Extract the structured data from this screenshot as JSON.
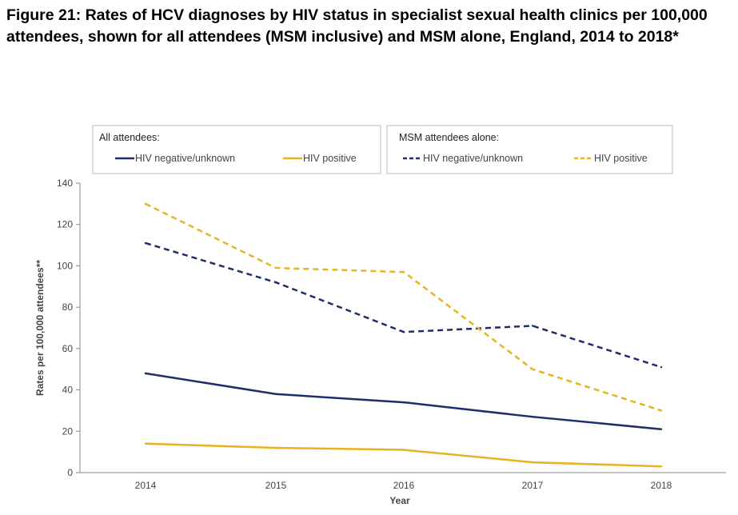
{
  "title": "Figure 21: Rates of HCV diagnoses by HIV status in specialist sexual health clinics per 100,000 attendees, shown for all attendees (MSM inclusive) and MSM alone, England, 2014 to 2018*",
  "chart_data": {
    "type": "line",
    "xlabel": "Year",
    "ylabel": "Rates per 100,000 attendees**",
    "ylim": [
      0,
      140
    ],
    "yticks": [
      0,
      20,
      40,
      60,
      80,
      100,
      120,
      140
    ],
    "categories": [
      "2014",
      "2015",
      "2016",
      "2017",
      "2018"
    ],
    "legend": {
      "placement": "top",
      "groups": [
        {
          "title": "All attendees:",
          "entries": [
            "HIV negative/unknown",
            "HIV positive"
          ]
        },
        {
          "title": "MSM attendees alone:",
          "entries": [
            "HIV negative/unknown",
            "HIV positive"
          ]
        }
      ]
    },
    "series": [
      {
        "name": "HIV negative/unknown",
        "group": "All attendees",
        "color": "#1f2d6b",
        "dash": false,
        "values": [
          48,
          38,
          34,
          27,
          21
        ]
      },
      {
        "name": "HIV positive",
        "group": "All attendees",
        "color": "#e8b321",
        "dash": false,
        "values": [
          14,
          12,
          11,
          5,
          3
        ]
      },
      {
        "name": "HIV negative/unknown",
        "group": "MSM attendees alone",
        "color": "#1f2d6b",
        "dash": true,
        "values": [
          111,
          92,
          68,
          71,
          51
        ]
      },
      {
        "name": "HIV positive",
        "group": "MSM attendees alone",
        "color": "#e8b321",
        "dash": true,
        "values": [
          130,
          99,
          97,
          50,
          30
        ]
      }
    ]
  }
}
